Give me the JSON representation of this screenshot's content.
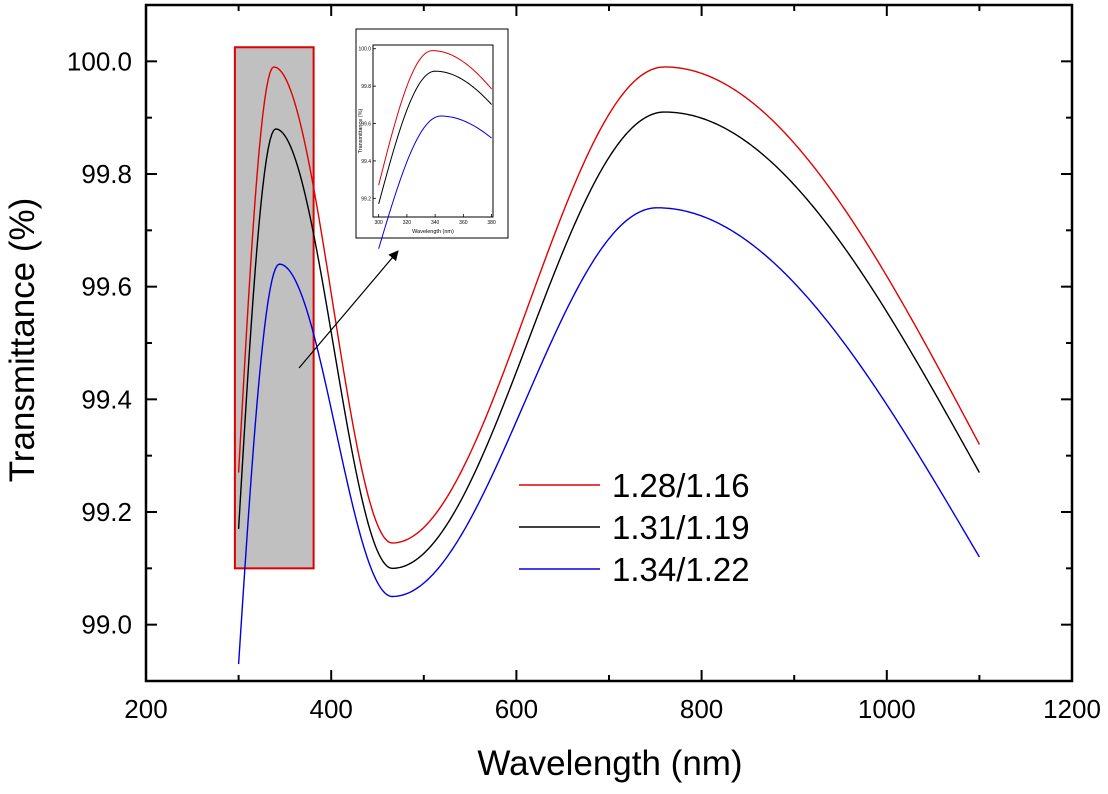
{
  "chart_data": {
    "type": "line",
    "xlabel": "Wavelength (nm)",
    "ylabel": "Transmittance (%)",
    "xlim": [
      200,
      1200
    ],
    "ylim": [
      98.9,
      100.1
    ],
    "x_ticks": [
      200,
      400,
      600,
      800,
      1000,
      1200
    ],
    "y_ticks": [
      "99.0",
      "99.2",
      "99.4",
      "99.6",
      "99.8",
      "100.0"
    ],
    "x_range_plotted": [
      300,
      1100
    ],
    "highlight_region": {
      "x": [
        296,
        381
      ],
      "y": [
        99.1,
        100.025
      ],
      "fill": "#c0c0c0",
      "stroke": "#e00000"
    },
    "series": [
      {
        "name": "1.28/1.16",
        "color": "#e00000",
        "start": 99.27,
        "peak1": [
          338,
          99.99
        ],
        "valley": [
          466,
          99.145
        ],
        "peak2": [
          760,
          99.99
        ],
        "end": 99.32
      },
      {
        "name": "1.31/1.19",
        "color": "#000000",
        "start": 99.17,
        "peak1": [
          340,
          99.88
        ],
        "valley": [
          466,
          99.1
        ],
        "peak2": [
          760,
          99.91
        ],
        "end": 99.27
      },
      {
        "name": "1.34/1.22",
        "color": "#0000e0",
        "start": 98.93,
        "peak1": [
          344,
          99.64
        ],
        "valley": [
          466,
          99.05
        ],
        "peak2": [
          752,
          99.74
        ],
        "end": 99.12
      }
    ],
    "inset": {
      "xlabel": "Wavelength (nm)",
      "ylabel": "Transmittance (%)",
      "xlim": [
        296,
        381
      ],
      "ylim": [
        99.1,
        100.02
      ],
      "x_ticks": [
        "300",
        "320",
        "340",
        "360",
        "380"
      ],
      "y_ticks": [
        "99.2",
        "99.4",
        "99.6",
        "99.8",
        "100.0"
      ]
    }
  }
}
